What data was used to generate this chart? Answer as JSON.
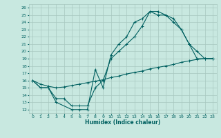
{
  "xlabel": "Humidex (Indice chaleur)",
  "ylabel": "",
  "xlim": [
    -0.5,
    23.5
  ],
  "ylim": [
    11.5,
    26.5
  ],
  "xticks": [
    0,
    1,
    2,
    3,
    4,
    5,
    6,
    7,
    8,
    9,
    10,
    11,
    12,
    13,
    14,
    15,
    16,
    17,
    18,
    19,
    20,
    21,
    22,
    23
  ],
  "yticks": [
    12,
    13,
    14,
    15,
    16,
    17,
    18,
    19,
    20,
    21,
    22,
    23,
    24,
    25,
    26
  ],
  "bg_color": "#c8e8e0",
  "grid_color": "#a8c8c0",
  "line_color": "#006060",
  "line1_x": [
    0,
    1,
    2,
    3,
    4,
    5,
    6,
    7,
    8,
    9,
    10,
    11,
    12,
    13,
    14,
    15,
    16,
    17,
    18,
    19,
    20,
    21,
    22,
    23
  ],
  "line1_y": [
    16,
    15.5,
    15.2,
    15.0,
    15.1,
    15.3,
    15.5,
    15.7,
    15.9,
    16.1,
    16.4,
    16.6,
    16.9,
    17.1,
    17.3,
    17.6,
    17.8,
    18.0,
    18.2,
    18.5,
    18.7,
    18.9,
    19.0,
    19.0
  ],
  "line2_x": [
    0,
    1,
    2,
    3,
    5,
    6,
    7,
    8,
    9,
    10,
    11,
    12,
    13,
    14,
    15,
    16,
    17,
    18,
    19,
    20,
    21,
    22,
    23
  ],
  "line2_y": [
    16,
    15,
    15,
    13,
    12,
    12,
    12,
    17.5,
    15,
    19.5,
    21,
    22,
    24,
    24.5,
    25.5,
    25,
    25,
    24.5,
    23,
    21,
    19,
    19,
    19
  ],
  "line3_x": [
    0,
    1,
    2,
    3,
    4,
    5,
    6,
    7,
    8,
    9,
    10,
    11,
    12,
    13,
    14,
    15,
    16,
    17,
    18,
    19,
    20,
    21,
    22,
    23
  ],
  "line3_y": [
    16,
    15,
    15,
    13.5,
    13.5,
    12.5,
    12.5,
    12.5,
    15,
    16,
    19,
    20,
    21,
    22,
    23.5,
    25.5,
    25.5,
    25,
    24,
    23,
    21,
    20,
    19,
    19
  ]
}
